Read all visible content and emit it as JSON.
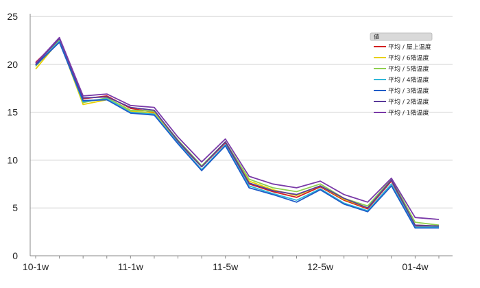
{
  "chart_data": {
    "type": "line",
    "title": "",
    "xlabel": "",
    "ylabel": "",
    "ylim": [
      0,
      25
    ],
    "yticks": [
      0,
      5,
      10,
      15,
      20,
      25
    ],
    "grid": "horizontal",
    "legend_title": "値",
    "legend_position": "top-right",
    "x_tick_labels": [
      {
        "index": 0,
        "label": "10-1w"
      },
      {
        "index": 4,
        "label": "11-1w"
      },
      {
        "index": 8,
        "label": "11-5w"
      },
      {
        "index": 12,
        "label": "12-5w"
      },
      {
        "index": 16,
        "label": "01-4w"
      }
    ],
    "x": [
      0,
      1,
      2,
      3,
      4,
      5,
      6,
      7,
      8,
      9,
      10,
      11,
      12,
      13,
      14,
      15,
      16,
      17
    ],
    "series": [
      {
        "name": "平均 / 屋上温度",
        "color": "#d32020",
        "values": [
          20.2,
          22.6,
          16.4,
          16.7,
          15.4,
          15.0,
          11.9,
          9.3,
          11.8,
          7.5,
          6.7,
          6.1,
          7.2,
          5.8,
          4.9,
          7.8,
          3.1,
          3.1
        ]
      },
      {
        "name": "平均 / 6階温度",
        "color": "#e8d000",
        "values": [
          19.5,
          22.5,
          15.8,
          16.3,
          15.1,
          14.9,
          12.0,
          9.3,
          11.9,
          7.8,
          6.9,
          6.3,
          7.3,
          5.9,
          5.0,
          7.9,
          3.2,
          3.1
        ]
      },
      {
        "name": "平均 / 5階温度",
        "color": "#8fd050",
        "values": [
          19.8,
          22.5,
          16.0,
          16.5,
          15.2,
          15.1,
          12.1,
          9.4,
          11.9,
          8.0,
          7.1,
          6.7,
          7.5,
          6.0,
          5.2,
          8.0,
          3.5,
          3.2
        ]
      },
      {
        "name": "平均 / 4階温度",
        "color": "#30b8d8",
        "values": [
          19.9,
          22.4,
          16.1,
          16.4,
          15.0,
          14.8,
          11.8,
          9.0,
          11.6,
          7.3,
          6.5,
          5.8,
          7.0,
          5.5,
          4.7,
          7.5,
          3.0,
          3.0
        ]
      },
      {
        "name": "平均 / 3階温度",
        "color": "#1f5cc8",
        "values": [
          19.9,
          22.3,
          16.2,
          16.3,
          14.9,
          14.7,
          11.7,
          8.9,
          11.5,
          7.1,
          6.4,
          5.6,
          6.9,
          5.4,
          4.6,
          7.3,
          2.9,
          2.9
        ]
      },
      {
        "name": "平均 / 2階温度",
        "color": "#5a3a9a",
        "values": [
          20.0,
          22.7,
          16.5,
          16.6,
          15.5,
          15.2,
          12.0,
          9.3,
          11.9,
          7.6,
          6.8,
          6.4,
          7.3,
          6.0,
          5.0,
          7.9,
          3.2,
          3.1
        ]
      },
      {
        "name": "平均 / 1階温度",
        "color": "#7a3aa8",
        "values": [
          20.1,
          22.8,
          16.7,
          16.9,
          15.7,
          15.5,
          12.4,
          9.8,
          12.2,
          8.3,
          7.5,
          7.1,
          7.8,
          6.4,
          5.6,
          8.1,
          4.0,
          3.8
        ]
      }
    ]
  }
}
